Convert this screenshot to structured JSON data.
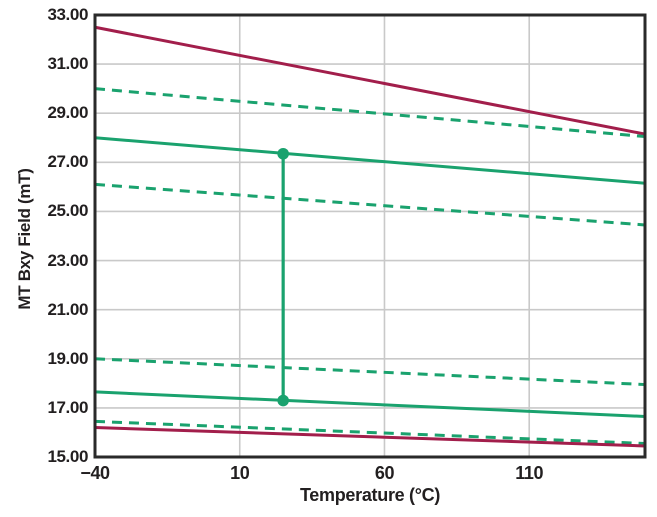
{
  "chart_data": {
    "type": "line",
    "title": "",
    "xlabel": "Temperature (°C)",
    "ylabel": "MT Bxy Field (mT)",
    "xlim": [
      -40,
      150
    ],
    "ylim": [
      15,
      33
    ],
    "grid": true,
    "legend": "none",
    "xticks": [
      {
        "v": -40,
        "label": "−40"
      },
      {
        "v": 10,
        "label": "10"
      },
      {
        "v": 60,
        "label": "60"
      },
      {
        "v": 110,
        "label": "110"
      }
    ],
    "yticks": [
      {
        "v": 33,
        "label": "33.00"
      },
      {
        "v": 31,
        "label": "31.00"
      },
      {
        "v": 29,
        "label": "29.00"
      },
      {
        "v": 27,
        "label": "27.00"
      },
      {
        "v": 25,
        "label": "25.00"
      },
      {
        "v": 23,
        "label": "23.00"
      },
      {
        "v": 21,
        "label": "21.00"
      },
      {
        "v": 19,
        "label": "19.00"
      },
      {
        "v": 17,
        "label": "17.00"
      },
      {
        "v": 15,
        "label": "15.00"
      }
    ],
    "colors": {
      "green": "#1aa26e",
      "crimson": "#a21e4b",
      "grid": "#c9c9c9",
      "axis": "#2a2a2a",
      "text": "#221f20"
    },
    "series": [
      {
        "name": "upper-limit-red",
        "color": "crimson",
        "style": "solid",
        "x": [
          -40,
          150
        ],
        "y": [
          32.5,
          28.15
        ]
      },
      {
        "name": "upper-sigma-outer-dashed",
        "color": "green",
        "style": "dashed",
        "x": [
          -40,
          150
        ],
        "y": [
          30.0,
          28.05
        ]
      },
      {
        "name": "upper-typical-solid",
        "color": "green",
        "style": "solid",
        "x": [
          -40,
          150
        ],
        "y": [
          28.0,
          26.15
        ]
      },
      {
        "name": "upper-sigma-inner-dashed",
        "color": "green",
        "style": "dashed",
        "x": [
          -40,
          150
        ],
        "y": [
          26.1,
          24.45
        ]
      },
      {
        "name": "lower-sigma-inner-dashed",
        "color": "green",
        "style": "dashed",
        "x": [
          -40,
          150
        ],
        "y": [
          19.0,
          17.95
        ]
      },
      {
        "name": "lower-typical-solid",
        "color": "green",
        "style": "solid",
        "x": [
          -40,
          150
        ],
        "y": [
          17.65,
          16.65
        ]
      },
      {
        "name": "lower-sigma-outer-dashed",
        "color": "green",
        "style": "dashed",
        "x": [
          -40,
          150
        ],
        "y": [
          16.45,
          15.55
        ]
      },
      {
        "name": "lower-limit-red",
        "color": "crimson",
        "style": "solid",
        "x": [
          -40,
          150
        ],
        "y": [
          16.2,
          15.45
        ]
      }
    ],
    "marker": {
      "name": "typ-span-at-25C",
      "x": 25,
      "y_top": 27.35,
      "y_bottom": 17.3,
      "color": "green"
    }
  }
}
